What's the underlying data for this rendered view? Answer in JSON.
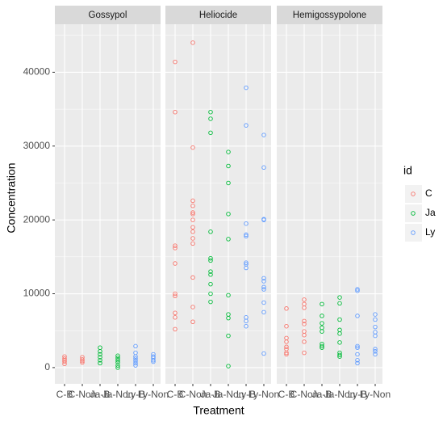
{
  "chart_data": {
    "type": "scatter",
    "x_label": "Treatment",
    "y_label": "Concentration",
    "facets": [
      "Gossypol",
      "Heliocide",
      "Hemigossypolone"
    ],
    "categories": [
      "C-B",
      "C-Non",
      "Ja-B",
      "Ja-Non",
      "Ly-B",
      "Ly-Non"
    ],
    "ylim": [
      -2200,
      46500
    ],
    "yticks": [
      0,
      10000,
      20000,
      30000,
      40000
    ],
    "yminorticks": [
      5000,
      15000,
      25000,
      35000,
      45000
    ],
    "grid": true,
    "legend_title": "id",
    "legend_position": "right",
    "series": [
      {
        "name": "C",
        "color": "#F8766D",
        "values": [
          [
            [
              1500,
              1200,
              1000,
              800,
              500
            ],
            [
              1400,
              1100,
              900,
              700
            ]
          ],
          [
            [
              41400,
              34600,
              16500,
              16200,
              14100,
              10000,
              9700,
              7400,
              6800,
              5200
            ],
            [
              44000,
              29800,
              22600,
              21900,
              21000,
              20800,
              20000,
              19000,
              18400,
              17500,
              16800,
              12200,
              8200,
              6200
            ]
          ],
          [
            [
              8000,
              5600,
              4000,
              3500,
              2800,
              2500,
              2000,
              1800
            ],
            [
              9200,
              8600,
              8100,
              6300,
              5900,
              4900,
              4400,
              3500,
              2000
            ]
          ]
        ]
      },
      {
        "name": "Ja",
        "color": "#00BA38",
        "values": [
          [
            [
              2700,
              2200,
              1800,
              1400,
              1000,
              600
            ],
            [
              1600,
              1300,
              1000,
              700,
              300,
              0
            ]
          ],
          [
            [
              34600,
              33700,
              31800,
              18400,
              14800,
              14500,
              13000,
              12600,
              11300,
              10000,
              8900
            ],
            [
              29200,
              27300,
              25000,
              20800,
              17400,
              9800,
              7200,
              6700,
              4300,
              200
            ]
          ],
          [
            [
              8600,
              7000,
              6000,
              5400,
              4900,
              3200,
              2900,
              2700
            ],
            [
              9500,
              8700,
              6500,
              5100,
              4600,
              3400,
              2000,
              1700,
              1500
            ]
          ]
        ]
      },
      {
        "name": "Ly",
        "color": "#619CFF",
        "values": [
          [
            [
              2900,
              2000,
              1500,
              1200,
              900,
              600,
              300
            ],
            [
              1800,
              1500,
              1300,
              1000,
              800
            ]
          ],
          [
            [
              37900,
              32800,
              19500,
              18000,
              17800,
              14200,
              14000,
              13500,
              6800,
              6300,
              5600
            ],
            [
              31500,
              27100,
              20100,
              20000,
              12100,
              11700,
              10900,
              10600,
              8800,
              7500,
              1900
            ]
          ],
          [
            [
              10600,
              10400,
              7000,
              2900,
              2700,
              1800,
              1000,
              600
            ],
            [
              7200,
              6500,
              5500,
              4800,
              4300,
              2500,
              2200,
              1800
            ]
          ]
        ]
      }
    ]
  }
}
